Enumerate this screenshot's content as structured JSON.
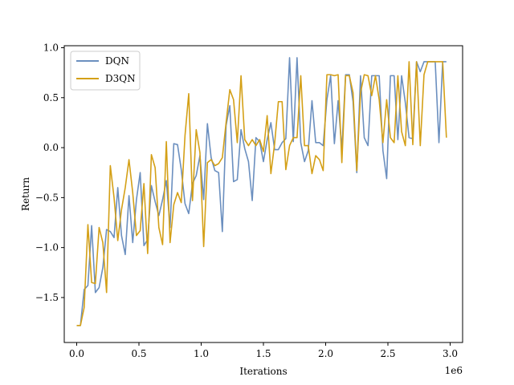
{
  "chart_data": {
    "type": "line",
    "xlabel": "Iterations",
    "ylabel": "Return",
    "x_offset_label": "1e6",
    "xlim": [
      -0.1,
      3.1
    ],
    "ylim": [
      -1.95,
      1.02
    ],
    "x_ticks": [
      0.0,
      0.5,
      1.0,
      1.5,
      2.0,
      2.5,
      3.0
    ],
    "x_tick_labels": [
      "0.0",
      "0.5",
      "1.0",
      "1.5",
      "2.0",
      "2.5",
      "3.0"
    ],
    "y_ticks": [
      -1.5,
      -1.0,
      -0.5,
      0.0,
      0.5,
      1.0
    ],
    "y_tick_labels": [
      "−1.5",
      "−1.0",
      "−0.5",
      "0.0",
      "0.5",
      "1.0"
    ],
    "grid": false,
    "legend_position": "top-left",
    "series": [
      {
        "name": "DQN",
        "color": "#6b8fbf",
        "points": [
          [
            0.0,
            -1.78
          ],
          [
            0.03,
            -1.78
          ],
          [
            0.06,
            -1.42
          ],
          [
            0.09,
            -1.38
          ],
          [
            0.12,
            -0.78
          ],
          [
            0.15,
            -1.45
          ],
          [
            0.18,
            -1.4
          ],
          [
            0.21,
            -1.2
          ],
          [
            0.24,
            -0.82
          ],
          [
            0.27,
            -0.84
          ],
          [
            0.3,
            -0.9
          ],
          [
            0.33,
            -0.4
          ],
          [
            0.36,
            -0.88
          ],
          [
            0.39,
            -1.07
          ],
          [
            0.42,
            -0.48
          ],
          [
            0.45,
            -0.95
          ],
          [
            0.48,
            -0.52
          ],
          [
            0.51,
            -0.25
          ],
          [
            0.54,
            -0.98
          ],
          [
            0.57,
            -0.92
          ],
          [
            0.6,
            -0.38
          ],
          [
            0.63,
            -0.54
          ],
          [
            0.66,
            -0.68
          ],
          [
            0.69,
            -0.52
          ],
          [
            0.72,
            -0.33
          ],
          [
            0.75,
            -0.8
          ],
          [
            0.78,
            0.04
          ],
          [
            0.81,
            0.03
          ],
          [
            0.84,
            -0.22
          ],
          [
            0.87,
            -0.56
          ],
          [
            0.9,
            -0.66
          ],
          [
            0.93,
            -0.36
          ],
          [
            0.96,
            -0.28
          ],
          [
            0.99,
            -0.08
          ],
          [
            1.02,
            -0.52
          ],
          [
            1.05,
            0.24
          ],
          [
            1.08,
            -0.1
          ],
          [
            1.11,
            -0.23
          ],
          [
            1.14,
            -0.25
          ],
          [
            1.17,
            -0.84
          ],
          [
            1.2,
            0.22
          ],
          [
            1.23,
            0.42
          ],
          [
            1.26,
            -0.34
          ],
          [
            1.29,
            -0.32
          ],
          [
            1.32,
            0.18
          ],
          [
            1.35,
            -0.01
          ],
          [
            1.38,
            -0.14
          ],
          [
            1.41,
            -0.53
          ],
          [
            1.44,
            0.1
          ],
          [
            1.47,
            0.06
          ],
          [
            1.5,
            -0.14
          ],
          [
            1.53,
            0.08
          ],
          [
            1.56,
            0.25
          ],
          [
            1.59,
            -0.02
          ],
          [
            1.62,
            -0.02
          ],
          [
            1.65,
            0.05
          ],
          [
            1.68,
            0.09
          ],
          [
            1.71,
            0.9
          ],
          [
            1.74,
            0.06
          ],
          [
            1.77,
            0.9
          ],
          [
            1.8,
            0.05
          ],
          [
            1.83,
            -0.14
          ],
          [
            1.86,
            -0.03
          ],
          [
            1.89,
            0.47
          ],
          [
            1.92,
            0.05
          ],
          [
            1.95,
            0.05
          ],
          [
            1.98,
            0.02
          ],
          [
            2.01,
            0.48
          ],
          [
            2.04,
            0.72
          ],
          [
            2.07,
            0.04
          ],
          [
            2.1,
            0.47
          ],
          [
            2.13,
            -0.02
          ],
          [
            2.16,
            0.73
          ],
          [
            2.19,
            0.73
          ],
          [
            2.22,
            0.46
          ],
          [
            2.25,
            -0.25
          ],
          [
            2.28,
            0.72
          ],
          [
            2.31,
            0.1
          ],
          [
            2.34,
            0.02
          ],
          [
            2.37,
            0.72
          ],
          [
            2.4,
            0.72
          ],
          [
            2.43,
            0.72
          ],
          [
            2.46,
            -0.03
          ],
          [
            2.49,
            -0.31
          ],
          [
            2.52,
            0.72
          ],
          [
            2.55,
            0.72
          ],
          [
            2.58,
            0.08
          ],
          [
            2.61,
            0.72
          ],
          [
            2.64,
            0.45
          ],
          [
            2.67,
            0.1
          ],
          [
            2.7,
            0.09
          ],
          [
            2.73,
            0.86
          ],
          [
            2.76,
            0.76
          ],
          [
            2.79,
            0.86
          ],
          [
            2.82,
            0.86
          ],
          [
            2.85,
            0.86
          ],
          [
            2.88,
            0.86
          ],
          [
            2.91,
            0.05
          ],
          [
            2.94,
            0.86
          ],
          [
            2.97,
            0.86
          ]
        ]
      },
      {
        "name": "D3QN",
        "color": "#d4a017",
        "points": [
          [
            0.0,
            -1.78
          ],
          [
            0.03,
            -1.78
          ],
          [
            0.06,
            -1.6
          ],
          [
            0.09,
            -0.77
          ],
          [
            0.12,
            -1.35
          ],
          [
            0.15,
            -1.36
          ],
          [
            0.18,
            -0.8
          ],
          [
            0.21,
            -0.95
          ],
          [
            0.24,
            -1.45
          ],
          [
            0.27,
            -0.18
          ],
          [
            0.3,
            -0.5
          ],
          [
            0.33,
            -0.93
          ],
          [
            0.36,
            -0.62
          ],
          [
            0.39,
            -0.4
          ],
          [
            0.42,
            -0.12
          ],
          [
            0.45,
            -0.45
          ],
          [
            0.48,
            -0.88
          ],
          [
            0.51,
            -0.83
          ],
          [
            0.54,
            -0.36
          ],
          [
            0.57,
            -1.06
          ],
          [
            0.6,
            -0.07
          ],
          [
            0.63,
            -0.2
          ],
          [
            0.66,
            -0.8
          ],
          [
            0.69,
            -0.97
          ],
          [
            0.72,
            0.06
          ],
          [
            0.75,
            -0.95
          ],
          [
            0.78,
            -0.57
          ],
          [
            0.81,
            -0.45
          ],
          [
            0.84,
            -0.55
          ],
          [
            0.87,
            0.12
          ],
          [
            0.9,
            0.54
          ],
          [
            0.93,
            -0.53
          ],
          [
            0.96,
            0.18
          ],
          [
            0.99,
            -0.05
          ],
          [
            1.02,
            -0.99
          ],
          [
            1.05,
            -0.15
          ],
          [
            1.08,
            -0.12
          ],
          [
            1.11,
            -0.18
          ],
          [
            1.14,
            -0.16
          ],
          [
            1.17,
            -0.1
          ],
          [
            1.2,
            0.25
          ],
          [
            1.23,
            0.58
          ],
          [
            1.26,
            0.48
          ],
          [
            1.29,
            0.05
          ],
          [
            1.32,
            0.72
          ],
          [
            1.35,
            0.08
          ],
          [
            1.38,
            0.02
          ],
          [
            1.41,
            0.08
          ],
          [
            1.44,
            0.02
          ],
          [
            1.47,
            0.08
          ],
          [
            1.5,
            -0.04
          ],
          [
            1.53,
            0.32
          ],
          [
            1.56,
            -0.26
          ],
          [
            1.59,
            0.04
          ],
          [
            1.62,
            0.46
          ],
          [
            1.65,
            0.46
          ],
          [
            1.68,
            -0.22
          ],
          [
            1.71,
            0.02
          ],
          [
            1.74,
            0.1
          ],
          [
            1.77,
            0.1
          ],
          [
            1.8,
            0.72
          ],
          [
            1.83,
            0.02
          ],
          [
            1.86,
            0.02
          ],
          [
            1.89,
            -0.26
          ],
          [
            1.92,
            -0.08
          ],
          [
            1.95,
            -0.12
          ],
          [
            1.98,
            -0.23
          ],
          [
            2.01,
            0.73
          ],
          [
            2.04,
            0.73
          ],
          [
            2.07,
            0.72
          ],
          [
            2.1,
            0.73
          ],
          [
            2.13,
            -0.15
          ],
          [
            2.16,
            0.72
          ],
          [
            2.19,
            0.72
          ],
          [
            2.22,
            0.55
          ],
          [
            2.25,
            -0.23
          ],
          [
            2.28,
            0.55
          ],
          [
            2.31,
            0.73
          ],
          [
            2.34,
            0.72
          ],
          [
            2.37,
            0.52
          ],
          [
            2.4,
            0.72
          ],
          [
            2.43,
            0.48
          ],
          [
            2.46,
            0.05
          ],
          [
            2.49,
            0.48
          ],
          [
            2.52,
            0.1
          ],
          [
            2.55,
            0.05
          ],
          [
            2.58,
            0.72
          ],
          [
            2.61,
            0.16
          ],
          [
            2.64,
            0.02
          ],
          [
            2.67,
            0.86
          ],
          [
            2.7,
            0.03
          ],
          [
            2.73,
            0.86
          ],
          [
            2.76,
            0.02
          ],
          [
            2.79,
            0.73
          ],
          [
            2.82,
            0.86
          ],
          [
            2.85,
            0.86
          ],
          [
            2.88,
            0.86
          ],
          [
            2.91,
            0.86
          ],
          [
            2.94,
            0.86
          ],
          [
            2.97,
            0.1
          ]
        ]
      }
    ]
  }
}
